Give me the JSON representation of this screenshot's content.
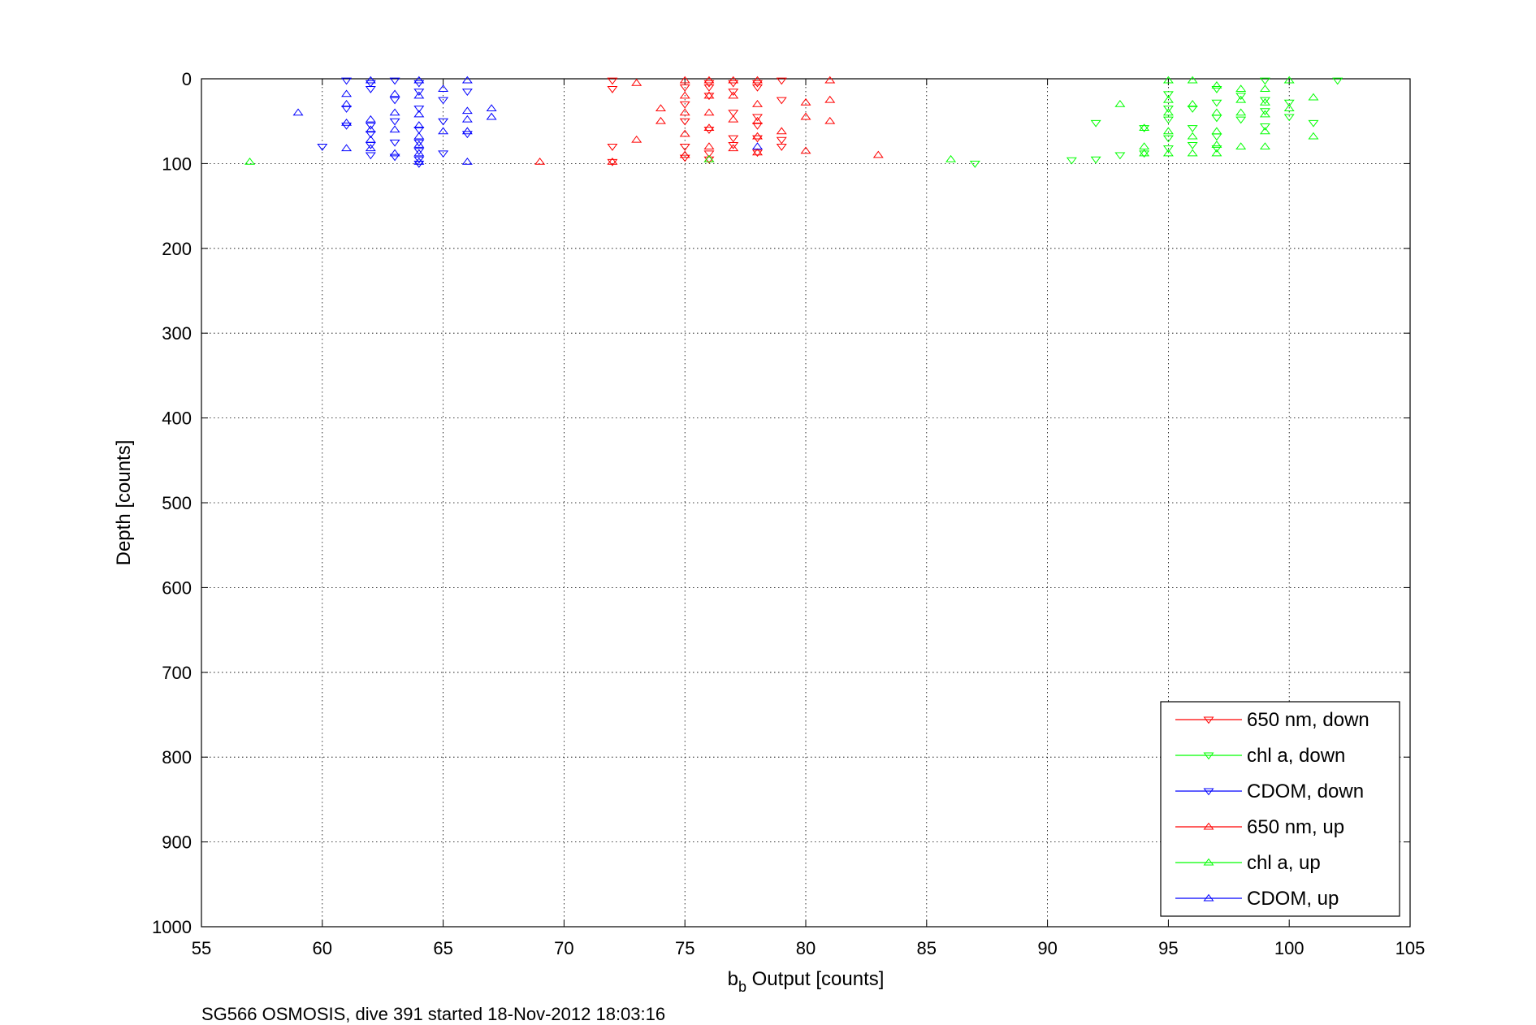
{
  "caption": "SG566 OSMOSIS, dive 391 started 18-Nov-2012 18:03:16",
  "chart_data": {
    "type": "scatter",
    "title": "",
    "xlabel_main": "b",
    "xlabel_sub": "b",
    "xlabel_rest": " Output [counts]",
    "ylabel": "Depth [counts]",
    "xlim": [
      55,
      105
    ],
    "ylim": [
      0,
      1000
    ],
    "y_reversed": true,
    "grid": true,
    "legend_position": "bottom-right",
    "xticks": [
      "55",
      "60",
      "65",
      "70",
      "75",
      "80",
      "85",
      "90",
      "95",
      "100",
      "105"
    ],
    "yticks": [
      "0",
      "100",
      "200",
      "300",
      "400",
      "500",
      "600",
      "700",
      "800",
      "900",
      "1000"
    ],
    "series": [
      {
        "name": "650 nm, down",
        "color": "#ff0000",
        "marker": "triangle-down",
        "points": [
          [
            72,
            2
          ],
          [
            72,
            12
          ],
          [
            76,
            5
          ],
          [
            77,
            5
          ],
          [
            78,
            5
          ],
          [
            79,
            2
          ],
          [
            75,
            10
          ],
          [
            76,
            10
          ],
          [
            77,
            15
          ],
          [
            78,
            10
          ],
          [
            79,
            25
          ],
          [
            76,
            20
          ],
          [
            75,
            30
          ],
          [
            77,
            40
          ],
          [
            78,
            45
          ],
          [
            78,
            55
          ],
          [
            75,
            50
          ],
          [
            76,
            60
          ],
          [
            77,
            70
          ],
          [
            78,
            70
          ],
          [
            79,
            80
          ],
          [
            75,
            80
          ],
          [
            76,
            88
          ],
          [
            77,
            78
          ],
          [
            72,
            80
          ],
          [
            72,
            98
          ],
          [
            75,
            93
          ],
          [
            76,
            95
          ],
          [
            78,
            87
          ],
          [
            79,
            72
          ]
        ]
      },
      {
        "name": "chl a, down",
        "color": "#00ff00",
        "marker": "triangle-down",
        "points": [
          [
            87,
            100
          ],
          [
            91,
            96
          ],
          [
            92,
            95
          ],
          [
            93,
            90
          ],
          [
            92,
            52
          ],
          [
            94,
            58
          ],
          [
            94,
            88
          ],
          [
            95,
            18
          ],
          [
            95,
            35
          ],
          [
            95,
            48
          ],
          [
            95,
            70
          ],
          [
            96,
            35
          ],
          [
            96,
            58
          ],
          [
            96,
            78
          ],
          [
            97,
            12
          ],
          [
            97,
            28
          ],
          [
            97,
            46
          ],
          [
            97,
            68
          ],
          [
            98,
            20
          ],
          [
            98,
            48
          ],
          [
            99,
            2
          ],
          [
            99,
            25
          ],
          [
            99,
            38
          ],
          [
            99,
            56
          ],
          [
            100,
            28
          ],
          [
            100,
            45
          ],
          [
            101,
            52
          ],
          [
            102,
            2
          ],
          [
            95,
            82
          ],
          [
            97,
            82
          ]
        ]
      },
      {
        "name": "CDOM, down",
        "color": "#0000ff",
        "marker": "triangle-down",
        "points": [
          [
            61,
            2
          ],
          [
            62,
            5
          ],
          [
            62,
            12
          ],
          [
            63,
            2
          ],
          [
            64,
            5
          ],
          [
            64,
            15
          ],
          [
            63,
            25
          ],
          [
            64,
            35
          ],
          [
            61,
            35
          ],
          [
            62,
            55
          ],
          [
            62,
            65
          ],
          [
            63,
            50
          ],
          [
            64,
            60
          ],
          [
            65,
            25
          ],
          [
            65,
            50
          ],
          [
            66,
            15
          ],
          [
            66,
            65
          ],
          [
            62,
            90
          ],
          [
            63,
            92
          ],
          [
            64,
            85
          ],
          [
            64,
            100
          ],
          [
            65,
            88
          ],
          [
            60,
            80
          ],
          [
            61,
            55
          ],
          [
            63,
            75
          ],
          [
            62,
            78
          ],
          [
            64,
            75
          ],
          [
            64,
            95
          ]
        ]
      },
      {
        "name": "650 nm, up",
        "color": "#ff0000",
        "marker": "triangle-up",
        "points": [
          [
            69,
            98
          ],
          [
            72,
            98
          ],
          [
            73,
            5
          ],
          [
            73,
            72
          ],
          [
            74,
            35
          ],
          [
            74,
            50
          ],
          [
            75,
            2
          ],
          [
            75,
            20
          ],
          [
            75,
            40
          ],
          [
            75,
            65
          ],
          [
            75,
            90
          ],
          [
            76,
            2
          ],
          [
            76,
            20
          ],
          [
            76,
            40
          ],
          [
            76,
            58
          ],
          [
            76,
            80
          ],
          [
            76,
            95
          ],
          [
            77,
            2
          ],
          [
            77,
            20
          ],
          [
            77,
            48
          ],
          [
            77,
            82
          ],
          [
            78,
            2
          ],
          [
            78,
            30
          ],
          [
            78,
            50
          ],
          [
            78,
            68
          ],
          [
            79,
            62
          ],
          [
            80,
            28
          ],
          [
            80,
            45
          ],
          [
            80,
            85
          ],
          [
            81,
            2
          ],
          [
            81,
            25
          ],
          [
            81,
            50
          ],
          [
            83,
            90
          ],
          [
            78,
            87
          ]
        ]
      },
      {
        "name": "chl a, up",
        "color": "#00ff00",
        "marker": "triangle-up",
        "points": [
          [
            57,
            98
          ],
          [
            86,
            95
          ],
          [
            93,
            30
          ],
          [
            94,
            80
          ],
          [
            94,
            88
          ],
          [
            94,
            58
          ],
          [
            95,
            2
          ],
          [
            95,
            25
          ],
          [
            95,
            40
          ],
          [
            95,
            62
          ],
          [
            95,
            88
          ],
          [
            96,
            2
          ],
          [
            96,
            30
          ],
          [
            96,
            68
          ],
          [
            96,
            88
          ],
          [
            97,
            8
          ],
          [
            97,
            40
          ],
          [
            97,
            62
          ],
          [
            97,
            78
          ],
          [
            97,
            88
          ],
          [
            98,
            12
          ],
          [
            98,
            25
          ],
          [
            98,
            40
          ],
          [
            98,
            80
          ],
          [
            99,
            12
          ],
          [
            99,
            28
          ],
          [
            99,
            42
          ],
          [
            99,
            62
          ],
          [
            99,
            80
          ],
          [
            100,
            2
          ],
          [
            100,
            35
          ],
          [
            101,
            22
          ],
          [
            101,
            68
          ],
          [
            76,
            95
          ]
        ]
      },
      {
        "name": "CDOM, up",
        "color": "#0000ff",
        "marker": "triangle-up",
        "points": [
          [
            59,
            40
          ],
          [
            61,
            18
          ],
          [
            61,
            30
          ],
          [
            61,
            52
          ],
          [
            61,
            82
          ],
          [
            62,
            2
          ],
          [
            62,
            48
          ],
          [
            62,
            60
          ],
          [
            62,
            72
          ],
          [
            62,
            82
          ],
          [
            63,
            18
          ],
          [
            63,
            40
          ],
          [
            63,
            60
          ],
          [
            63,
            88
          ],
          [
            64,
            2
          ],
          [
            64,
            20
          ],
          [
            64,
            42
          ],
          [
            64,
            55
          ],
          [
            64,
            68
          ],
          [
            64,
            78
          ],
          [
            64,
            88
          ],
          [
            64,
            98
          ],
          [
            65,
            12
          ],
          [
            65,
            62
          ],
          [
            66,
            2
          ],
          [
            66,
            38
          ],
          [
            66,
            48
          ],
          [
            66,
            62
          ],
          [
            66,
            98
          ],
          [
            67,
            35
          ],
          [
            67,
            45
          ],
          [
            78,
            80
          ]
        ]
      }
    ]
  }
}
